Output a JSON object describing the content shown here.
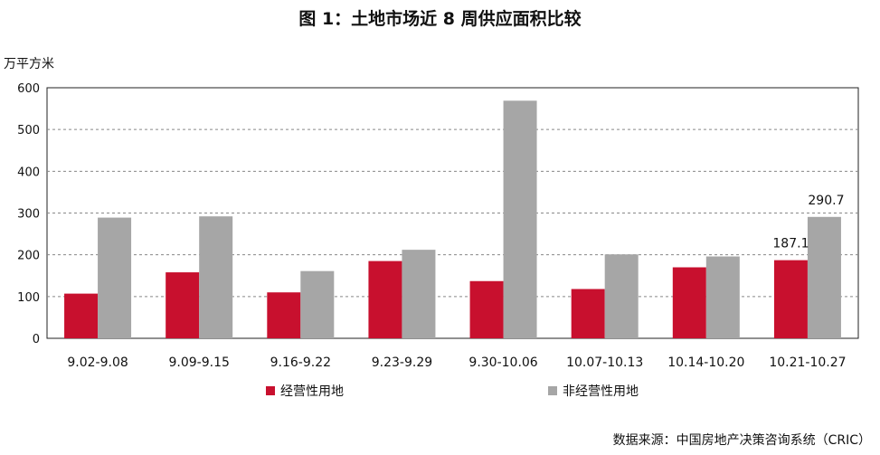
{
  "chart_data": {
    "type": "bar",
    "title": "图 1：土地市场近 8 周供应面积比较",
    "ylabel": "万平方米",
    "ylim": [
      0,
      600
    ],
    "yticks": [
      0,
      100,
      200,
      300,
      400,
      500,
      600
    ],
    "grid": true,
    "legend_position": "bottom-left",
    "categories": [
      "9.02-9.08",
      "9.09-9.15",
      "9.16-9.22",
      "9.23-9.29",
      "9.30-10.06",
      "10.07-10.13",
      "10.14-10.20",
      "10.21-10.27"
    ],
    "series": [
      {
        "name": "经营性用地",
        "color": "#c8102e",
        "values": [
          107,
          158,
          110,
          185,
          137,
          118,
          170,
          187.1
        ]
      },
      {
        "name": "非经营性用地",
        "color": "#a6a6a6",
        "values": [
          289,
          292,
          161,
          212,
          569,
          201,
          196,
          290.7
        ]
      }
    ],
    "data_labels": [
      {
        "series": 0,
        "index": 7,
        "text": "187.1"
      },
      {
        "series": 1,
        "index": 7,
        "text": "290.7"
      }
    ],
    "source": "数据来源：中国房地产决策咨询系统（CRIC）"
  }
}
